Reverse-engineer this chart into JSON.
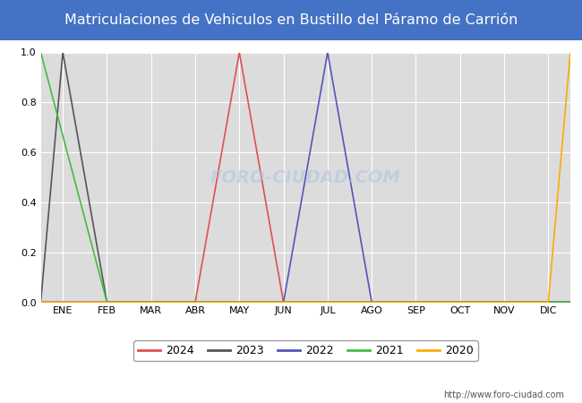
{
  "title": "Matriculaciones de Vehiculos en Bustillo del Páramo de Carrión",
  "title_bg_color": "#4472c4",
  "title_text_color": "#ffffff",
  "plot_bg_color": "#dcdcdc",
  "fig_bg_color": "#ffffff",
  "grid_color": "#ffffff",
  "months": [
    "ENE",
    "FEB",
    "MAR",
    "ABR",
    "MAY",
    "JUN",
    "JUL",
    "AGO",
    "SEP",
    "OCT",
    "NOV",
    "DIC"
  ],
  "ylim": [
    0.0,
    1.0
  ],
  "yticks": [
    0.0,
    0.2,
    0.4,
    0.6,
    0.8,
    1.0
  ],
  "series": [
    {
      "label": "2024",
      "color": "#e05050",
      "data": [
        [
          0,
          0
        ],
        [
          3.5,
          0
        ],
        [
          4.5,
          1.0
        ],
        [
          5.5,
          0
        ],
        [
          12,
          0
        ]
      ]
    },
    {
      "label": "2023",
      "color": "#555555",
      "data": [
        [
          0,
          0
        ],
        [
          0.5,
          1.0
        ],
        [
          1.5,
          0
        ],
        [
          12,
          0
        ]
      ]
    },
    {
      "label": "2022",
      "color": "#5555bb",
      "data": [
        [
          0,
          0
        ],
        [
          5.5,
          0
        ],
        [
          6.5,
          1.0
        ],
        [
          7.5,
          0
        ],
        [
          12,
          0
        ]
      ]
    },
    {
      "label": "2021",
      "color": "#44bb44",
      "data": [
        [
          0,
          1.0
        ],
        [
          1.5,
          0
        ],
        [
          12,
          0
        ]
      ]
    },
    {
      "label": "2020",
      "color": "#ffaa00",
      "data": [
        [
          0,
          0
        ],
        [
          11.5,
          0
        ],
        [
          12,
          1.0
        ]
      ]
    }
  ],
  "watermark_text": "http://www.foro-ciudad.com",
  "watermark_center": "FORO-CIUDAD.COM"
}
